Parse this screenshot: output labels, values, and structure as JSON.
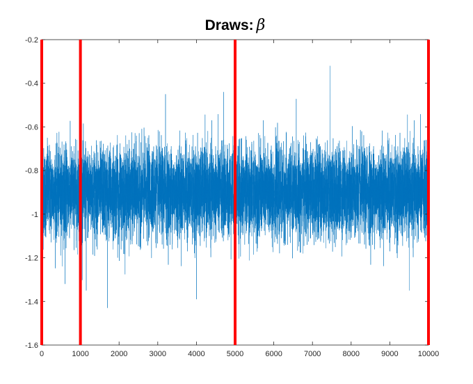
{
  "chart_data": {
    "type": "line",
    "title": "Draws:",
    "title_symbol": "β",
    "xlabel": "",
    "ylabel": "",
    "xlim": [
      0,
      10000
    ],
    "ylim": [
      -1.6,
      -0.2
    ],
    "x_ticks": [
      0,
      1000,
      2000,
      3000,
      4000,
      5000,
      6000,
      7000,
      8000,
      9000,
      10000
    ],
    "x_tick_labels": [
      "0",
      "1000",
      "2000",
      "3000",
      "4000",
      "5000",
      "6000",
      "7000",
      "8000",
      "9000",
      "10000"
    ],
    "y_ticks": [
      -0.2,
      -0.4,
      -0.6,
      -0.8,
      -1.0,
      -1.2,
      -1.4,
      -1.6
    ],
    "y_tick_labels": [
      "-0.2",
      "-0.4",
      "-0.6",
      "-0.8",
      "-1",
      "-1.2",
      "-1.4",
      "-1.6"
    ],
    "grid": false,
    "series": [
      {
        "color": "#0072BD",
        "n_draws": 10000,
        "mean": -0.9,
        "sd": 0.1,
        "notable_points": [
          {
            "x": 1700,
            "y": -1.43
          },
          {
            "x": 4000,
            "y": -1.39
          },
          {
            "x": 7450,
            "y": -0.32
          },
          {
            "x": 9500,
            "y": -1.35
          },
          {
            "x": 4700,
            "y": -0.44
          },
          {
            "x": 3200,
            "y": -0.45
          },
          {
            "x": 1150,
            "y": -1.35
          },
          {
            "x": 600,
            "y": -1.32
          }
        ]
      }
    ],
    "vertical_lines": {
      "color": "#FF0000",
      "x": [
        0,
        1000,
        5000,
        10000
      ]
    }
  }
}
